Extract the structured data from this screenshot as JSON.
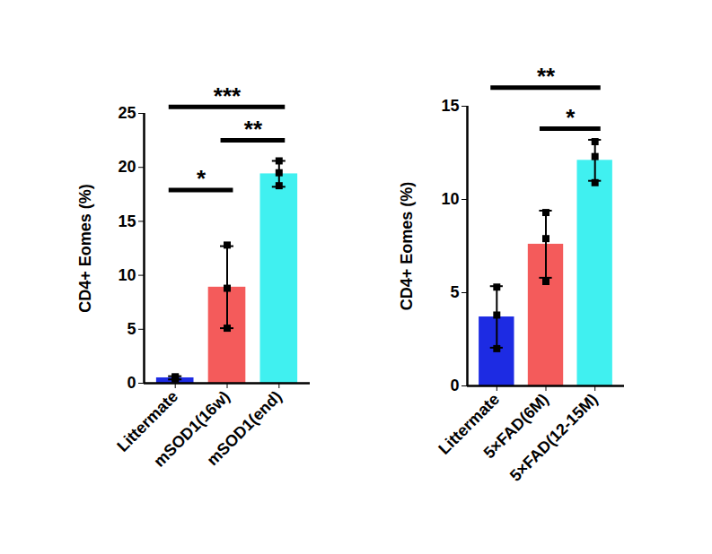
{
  "chart_data": [
    {
      "type": "bar",
      "categories": [
        "Littermate",
        "mSOD1(16w)",
        "mSOD1(end)"
      ],
      "values": [
        0.5,
        8.9,
        19.4
      ],
      "errors": [
        0.15,
        3.8,
        1.2
      ],
      "points": [
        [
          0.4,
          0.6,
          0.5
        ],
        [
          12.8,
          8.8,
          5.1
        ],
        [
          20.6,
          19.5,
          18.3
        ]
      ],
      "colors": [
        "#1d2be3",
        "#f45b5b",
        "#40f0f0"
      ],
      "y_label": "CD4+ Eomes (%)",
      "ylim": [
        0,
        25
      ],
      "yticks": [
        0,
        5,
        10,
        15,
        20,
        25
      ],
      "significance": [
        {
          "from": "Littermate",
          "to": "mSOD1(16w)",
          "y": 17.9,
          "label": "*"
        },
        {
          "from": "mSOD1(16w)",
          "to": "mSOD1(end)",
          "y": 22.5,
          "label": "**"
        },
        {
          "from": "Littermate",
          "to": "mSOD1(end)",
          "y": 25.6,
          "label": "***"
        }
      ]
    },
    {
      "type": "bar",
      "categories": [
        "Littermate",
        "5×FAD(6M)",
        "5×FAD(12-15M)"
      ],
      "values": [
        3.7,
        7.6,
        12.1
      ],
      "errors": [
        1.65,
        1.8,
        1.1
      ],
      "points": [
        [
          5.3,
          3.8,
          2.0
        ],
        [
          9.3,
          7.9,
          5.6
        ],
        [
          13.1,
          12.3,
          10.9
        ]
      ],
      "colors": [
        "#1d2be3",
        "#f45b5b",
        "#40f0f0"
      ],
      "y_label": "CD4+ Eomes (%)",
      "ylim": [
        0,
        15
      ],
      "yticks": [
        0,
        5,
        10,
        15
      ],
      "significance": [
        {
          "from": "5×FAD(6M)",
          "to": "5×FAD(12-15M)",
          "y": 13.8,
          "label": "*"
        },
        {
          "from": "Littermate",
          "to": "5×FAD(12-15M)",
          "y": 16.0,
          "label": "**"
        }
      ]
    }
  ]
}
